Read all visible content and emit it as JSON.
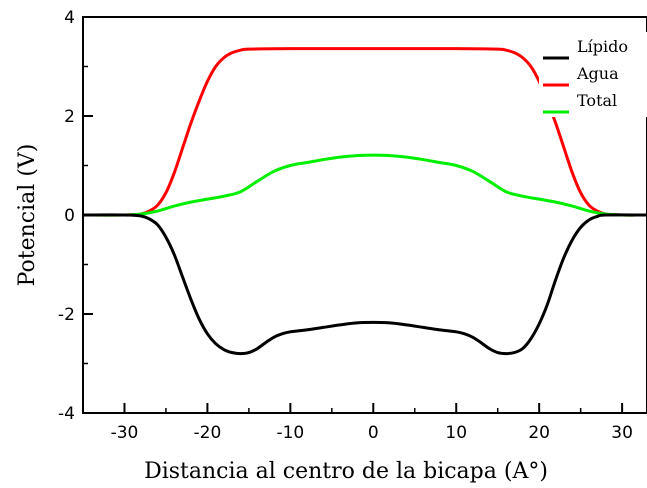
{
  "chart_data": {
    "type": "line",
    "xlabel": "Distancia al centro de la bicapa (A°)",
    "ylabel": "Potencial (V)",
    "xlim": [
      -35,
      33
    ],
    "ylim": [
      -4,
      4
    ],
    "xticks": [
      -30,
      -20,
      -10,
      0,
      10,
      20,
      30
    ],
    "yticks": [
      -4,
      -2,
      0,
      2,
      4
    ],
    "grid": false,
    "legend_position": "top-right",
    "series": [
      {
        "name": "Lípido",
        "color": "#000000",
        "points": [
          [
            -35,
            0
          ],
          [
            -30,
            0
          ],
          [
            -28,
            -0.02
          ],
          [
            -27,
            -0.08
          ],
          [
            -26,
            -0.2
          ],
          [
            -25,
            -0.45
          ],
          [
            -24,
            -0.8
          ],
          [
            -23,
            -1.25
          ],
          [
            -22,
            -1.7
          ],
          [
            -21,
            -2.1
          ],
          [
            -20,
            -2.4
          ],
          [
            -19,
            -2.6
          ],
          [
            -18,
            -2.72
          ],
          [
            -17,
            -2.78
          ],
          [
            -16,
            -2.8
          ],
          [
            -15,
            -2.78
          ],
          [
            -14,
            -2.7
          ],
          [
            -13,
            -2.58
          ],
          [
            -12,
            -2.47
          ],
          [
            -11,
            -2.4
          ],
          [
            -10,
            -2.36
          ],
          [
            -8,
            -2.32
          ],
          [
            -6,
            -2.27
          ],
          [
            -4,
            -2.22
          ],
          [
            -2,
            -2.18
          ],
          [
            0,
            -2.17
          ],
          [
            2,
            -2.18
          ],
          [
            4,
            -2.22
          ],
          [
            6,
            -2.27
          ],
          [
            8,
            -2.32
          ],
          [
            10,
            -2.36
          ],
          [
            11,
            -2.4
          ],
          [
            12,
            -2.47
          ],
          [
            13,
            -2.58
          ],
          [
            14,
            -2.7
          ],
          [
            15,
            -2.78
          ],
          [
            16,
            -2.8
          ],
          [
            17,
            -2.78
          ],
          [
            18,
            -2.7
          ],
          [
            19,
            -2.5
          ],
          [
            20,
            -2.2
          ],
          [
            21,
            -1.8
          ],
          [
            22,
            -1.3
          ],
          [
            23,
            -0.85
          ],
          [
            24,
            -0.5
          ],
          [
            25,
            -0.25
          ],
          [
            26,
            -0.1
          ],
          [
            27,
            -0.03
          ],
          [
            28,
            0
          ],
          [
            33,
            0
          ]
        ]
      },
      {
        "name": "Agua",
        "color": "#ff0000",
        "points": [
          [
            -35,
            0
          ],
          [
            -30,
            0
          ],
          [
            -28,
            0.02
          ],
          [
            -27,
            0.08
          ],
          [
            -26,
            0.2
          ],
          [
            -25,
            0.45
          ],
          [
            -24,
            0.85
          ],
          [
            -23,
            1.35
          ],
          [
            -22,
            1.85
          ],
          [
            -21,
            2.3
          ],
          [
            -20,
            2.7
          ],
          [
            -19,
            3.0
          ],
          [
            -18,
            3.18
          ],
          [
            -17,
            3.28
          ],
          [
            -16,
            3.33
          ],
          [
            -15,
            3.35
          ],
          [
            -10,
            3.36
          ],
          [
            0,
            3.36
          ],
          [
            10,
            3.36
          ],
          [
            15,
            3.35
          ],
          [
            16,
            3.33
          ],
          [
            17,
            3.28
          ],
          [
            18,
            3.18
          ],
          [
            19,
            3.0
          ],
          [
            20,
            2.7
          ],
          [
            21,
            2.3
          ],
          [
            22,
            1.85
          ],
          [
            23,
            1.35
          ],
          [
            24,
            0.85
          ],
          [
            25,
            0.45
          ],
          [
            26,
            0.2
          ],
          [
            27,
            0.08
          ],
          [
            28,
            0.02
          ],
          [
            30,
            0
          ],
          [
            33,
            0
          ]
        ]
      },
      {
        "name": "Total",
        "color": "#00ee00",
        "points": [
          [
            -35,
            0
          ],
          [
            -30,
            0
          ],
          [
            -28,
            0.02
          ],
          [
            -26,
            0.08
          ],
          [
            -24,
            0.18
          ],
          [
            -22,
            0.26
          ],
          [
            -20,
            0.32
          ],
          [
            -18,
            0.38
          ],
          [
            -16,
            0.47
          ],
          [
            -14,
            0.68
          ],
          [
            -12,
            0.88
          ],
          [
            -10,
            1.0
          ],
          [
            -8,
            1.06
          ],
          [
            -6,
            1.12
          ],
          [
            -4,
            1.17
          ],
          [
            -2,
            1.2
          ],
          [
            0,
            1.21
          ],
          [
            2,
            1.2
          ],
          [
            4,
            1.17
          ],
          [
            6,
            1.12
          ],
          [
            8,
            1.06
          ],
          [
            10,
            1.0
          ],
          [
            12,
            0.88
          ],
          [
            14,
            0.68
          ],
          [
            16,
            0.47
          ],
          [
            18,
            0.38
          ],
          [
            20,
            0.32
          ],
          [
            22,
            0.26
          ],
          [
            24,
            0.18
          ],
          [
            26,
            0.08
          ],
          [
            28,
            0.02
          ],
          [
            30,
            0
          ],
          [
            33,
            0
          ]
        ]
      }
    ]
  }
}
